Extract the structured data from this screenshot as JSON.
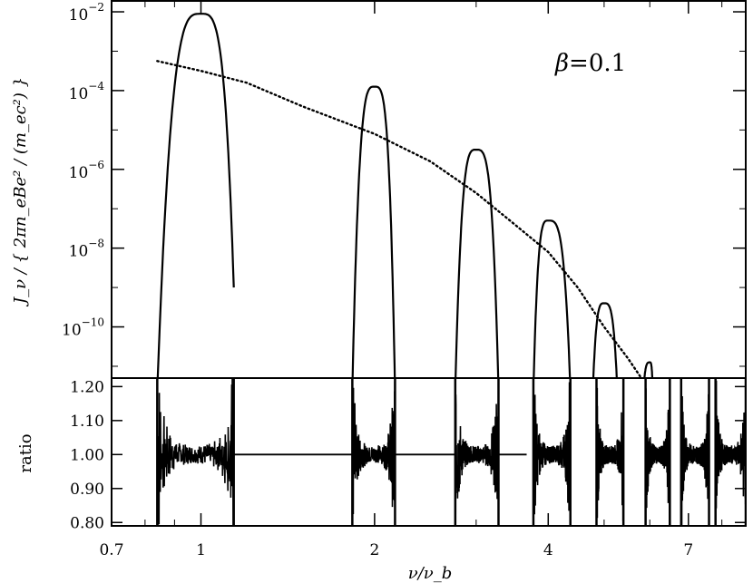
{
  "chart_data": [
    {
      "type": "line",
      "panel": "top",
      "ylabel": "J_ν / { 2πn_eBe² / (m_ec²) }",
      "yscale": "log",
      "ylim_log10": [
        -11.3,
        -1.7
      ],
      "y_ticks": [
        {
          "label": "10",
          "exp": "−2",
          "log": -2
        },
        {
          "label": "10",
          "exp": "−4",
          "log": -4
        },
        {
          "label": "10",
          "exp": "−6",
          "log": -6
        },
        {
          "label": "10",
          "exp": "−8",
          "log": -8
        },
        {
          "label": "10",
          "exp": "−10",
          "log": -10
        }
      ],
      "annotation": {
        "symbol": "β",
        "text": "=0.1"
      },
      "series": [
        {
          "style": "solid",
          "harmonics": [
            {
              "center": 1.0,
              "peak_log10": -2.05,
              "left_ext": 0.84,
              "right_ext": 1.14,
              "right_end_log10": -9.0
            },
            {
              "center": 2.0,
              "peak_log10": -3.9,
              "left_ext": 1.83,
              "right_ext": 2.17
            },
            {
              "center": 3.0,
              "peak_log10": -5.5,
              "left_ext": 2.76,
              "right_ext": 3.28
            },
            {
              "center": 4.0,
              "peak_log10": -7.3,
              "left_ext": 3.77,
              "right_ext": 4.37
            },
            {
              "center": 5.0,
              "peak_log10": -9.4,
              "left_ext": 4.78,
              "right_ext": 5.27
            },
            {
              "center": 6.0,
              "peak_log10": -10.9,
              "left_ext": 5.85,
              "right_ext": 6.07
            }
          ]
        },
        {
          "style": "dotted",
          "x": [
            0.84,
            1.0,
            1.2,
            1.5,
            2.0,
            2.5,
            3.0,
            3.5,
            4.0,
            4.5,
            5.0,
            5.5,
            5.8
          ],
          "log10_y": [
            -3.25,
            -3.5,
            -3.8,
            -4.4,
            -5.1,
            -5.8,
            -6.6,
            -7.4,
            -8.1,
            -9.0,
            -10.0,
            -10.8,
            -11.3
          ]
        }
      ]
    },
    {
      "type": "line",
      "panel": "bottom",
      "xlabel": "ν/ν_b",
      "ylabel": "ratio",
      "xscale": "log",
      "xlim": [
        0.7,
        8.8
      ],
      "ylim": [
        0.79,
        1.225
      ],
      "x_ticks": [
        "0.7",
        "1",
        "2",
        "4",
        "7"
      ],
      "x_tick_values": [
        0.7,
        1,
        2,
        4,
        7
      ],
      "y_ticks": [
        "1.20",
        "1.10",
        "1.00",
        "0.90",
        "0.80"
      ],
      "y_tick_values": [
        1.2,
        1.1,
        1.0,
        0.9,
        0.8
      ],
      "series": [
        {
          "style": "noisy",
          "segments": [
            [
              0.84,
              1.14
            ],
            [
              1.83,
              2.17
            ],
            [
              2.76,
              3.28
            ],
            [
              3.77,
              4.37
            ],
            [
              4.85,
              5.4
            ],
            [
              5.9,
              6.5
            ],
            [
              6.8,
              7.6
            ],
            [
              7.8,
              8.8
            ]
          ],
          "baseline": 1.0,
          "flat_gaps": [
            [
              1.14,
              1.83
            ],
            [
              2.17,
              2.76
            ],
            [
              3.28,
              3.67
            ]
          ]
        }
      ]
    }
  ]
}
